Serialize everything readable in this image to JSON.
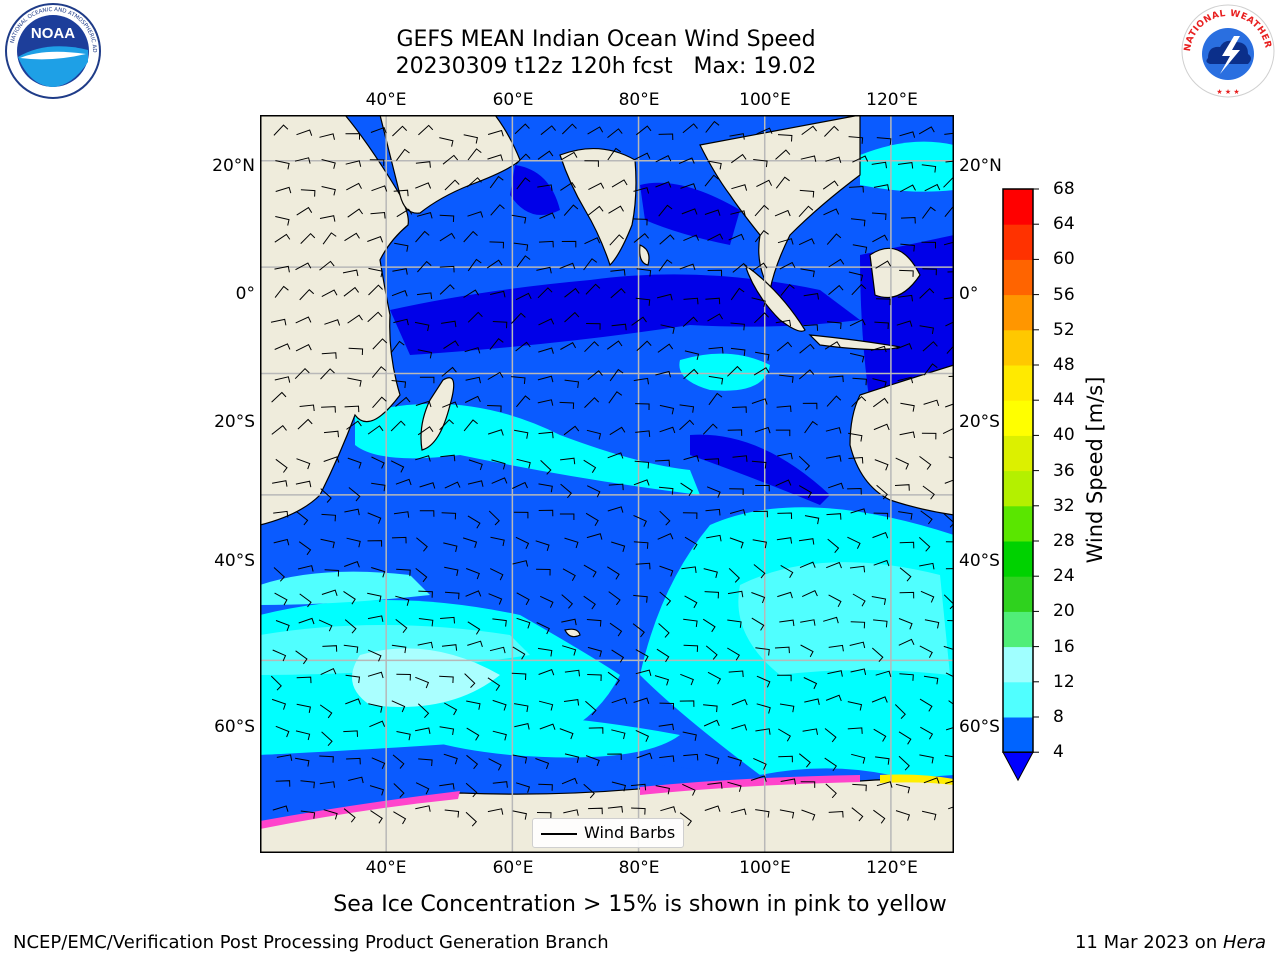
{
  "title": {
    "line1": "GEFS MEAN Indian Ocean Wind Speed",
    "line2": "20230309 t12z 120h fcst   Max: 19.02"
  },
  "map": {
    "lon_labels": [
      "40°E",
      "60°E",
      "80°E",
      "100°E",
      "120°E"
    ],
    "lat_labels": [
      "20°N",
      "0°",
      "20°S",
      "40°S",
      "60°S"
    ],
    "lon_range": [
      20,
      130
    ],
    "lat_range": [
      -74,
      28
    ],
    "colors": {
      "land": "#efecdc",
      "ocean_low": "#0a5bff",
      "ocean_calm": "#0000e8",
      "ocean_mid": "#0088ff",
      "ocean_high": "#00ffff",
      "ocean_top": "#aaffff",
      "sea_ice": "#ff44cc"
    }
  },
  "legend": {
    "label": "Wind Barbs"
  },
  "colorbar": {
    "title": "Wind Speed [m/s]",
    "ticks": [
      "68",
      "64",
      "60",
      "56",
      "52",
      "48",
      "44",
      "40",
      "36",
      "32",
      "28",
      "24",
      "20",
      "16",
      "12",
      "8",
      "4"
    ],
    "colors": [
      "#0064ff",
      "#00ffff",
      "#50ffff",
      "#a0ffff",
      "#50ee78",
      "#2fd21e",
      "#00d200",
      "#5ae600",
      "#b4f000",
      "#dcf000",
      "#ffff00",
      "#ffea00",
      "#ffc800",
      "#ff9600",
      "#ff6400",
      "#ff3200",
      "#ff0000"
    ],
    "under_color": "#0000ff"
  },
  "caption": "Sea Ice Concentration > 15% is shown in pink to yellow",
  "footer": {
    "left": "NCEP/EMC/Verification Post Processing Product Generation Branch",
    "date": "11 Mar 2023 on ",
    "host": "Hera"
  },
  "logos": {
    "noaa": "NOAA",
    "nws_ring": "NATIONAL WEATHER SERVICE"
  }
}
